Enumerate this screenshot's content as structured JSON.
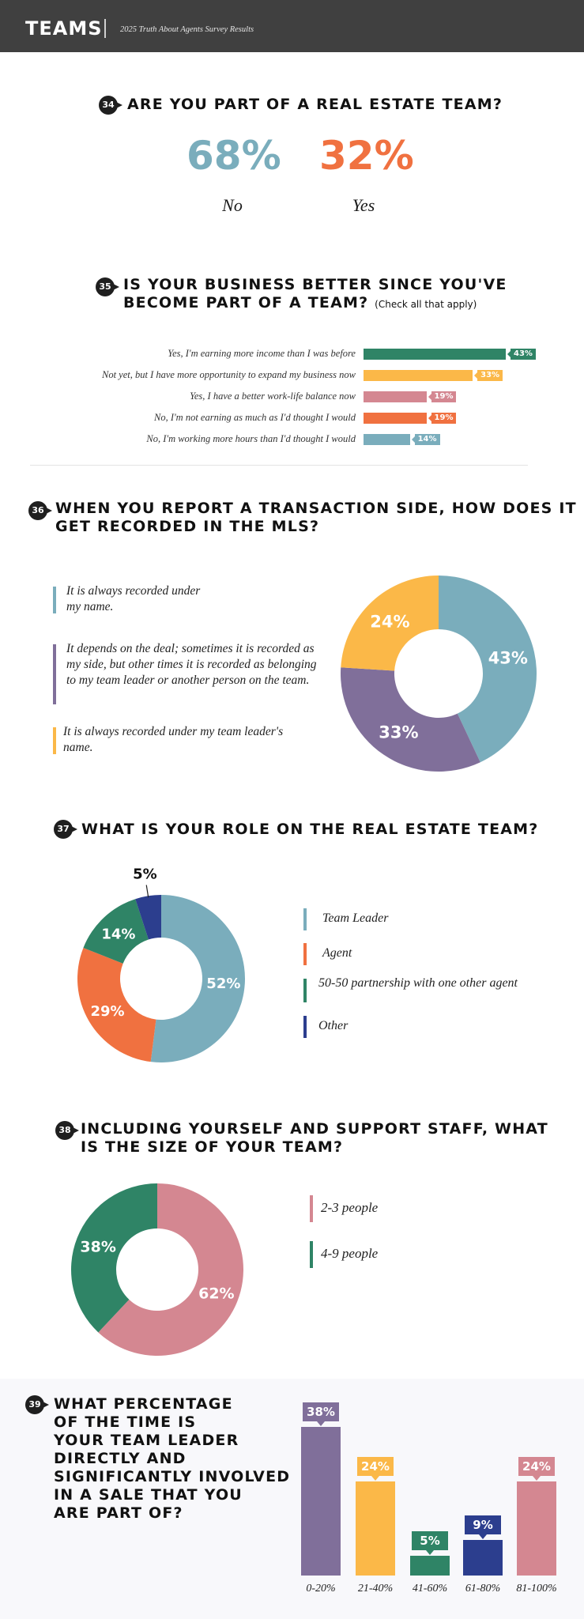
{
  "header": {
    "brand": "TEAMS",
    "subtitle": "2025 Truth About Agents Survey Results"
  },
  "colors": {
    "teal": "#7aadbc",
    "orange": "#f07140",
    "green": "#2f8466",
    "yellow": "#fbb848",
    "pink": "#d48791",
    "purple": "#806f9a",
    "navy": "#2c3e8e",
    "header_bg": "#404040"
  },
  "q34": {
    "num": "34",
    "title": "ARE YOU PART OF A REAL ESTATE TEAM?",
    "chart_data": {
      "type": "table",
      "categories": [
        "No",
        "Yes"
      ],
      "values": [
        68,
        32
      ],
      "labels": [
        "68%",
        "32%"
      ]
    }
  },
  "q35": {
    "num": "35",
    "title_line1": "IS YOUR BUSINESS BETTER SINCE YOU'VE",
    "title_line2": "BECOME PART OF A TEAM?",
    "note": "(Check all that apply)",
    "chart_data": {
      "type": "bar",
      "orientation": "horizontal",
      "categories": [
        "Yes, I'm earning more income than I was before",
        "Not yet, but I have more opportunity to expand my business now",
        "Yes, I have a better work-life balance now",
        "No, I'm not earning as much as I'd thought I would",
        "No, I'm working more hours than I'd thought I would"
      ],
      "values": [
        43,
        33,
        19,
        19,
        14
      ],
      "labels": [
        "43%",
        "33%",
        "19%",
        "19%",
        "14%"
      ],
      "colors": [
        "#2f8466",
        "#fbb848",
        "#d48791",
        "#f07140",
        "#7aadbc"
      ]
    }
  },
  "q36": {
    "num": "36",
    "title_line1": "WHEN YOU REPORT A TRANSACTION SIDE, HOW DOES IT",
    "title_line2": "GET RECORDED IN THE MLS?",
    "chart_data": {
      "type": "pie",
      "donut": true,
      "categories": [
        "It is always recorded under my name.",
        "It depends on the deal; sometimes it is recorded as my side, but other times it is recorded as belonging to my team leader or another person on the team.",
        "It is always recorded under my team leader's name."
      ],
      "values": [
        43,
        33,
        24
      ],
      "labels": [
        "43%",
        "33%",
        "24%"
      ],
      "colors": [
        "#7aadbc",
        "#806f9a",
        "#fbb848"
      ]
    }
  },
  "q37": {
    "num": "37",
    "title": "WHAT IS YOUR ROLE ON THE REAL ESTATE TEAM?",
    "chart_data": {
      "type": "pie",
      "donut": true,
      "categories": [
        "Team Leader",
        "Agent",
        "50-50 partnership with one other agent",
        "Other"
      ],
      "values": [
        52,
        29,
        14,
        5
      ],
      "labels": [
        "52%",
        "29%",
        "14%",
        "5%"
      ],
      "colors": [
        "#7aadbc",
        "#f07140",
        "#2f8466",
        "#2c3e8e"
      ]
    }
  },
  "q38": {
    "num": "38",
    "title_line1": "INCLUDING YOURSELF AND SUPPORT STAFF, WHAT",
    "title_line2": "IS THE SIZE OF YOUR TEAM?",
    "chart_data": {
      "type": "pie",
      "donut": true,
      "categories": [
        "2-3 people",
        "4-9 people"
      ],
      "values": [
        62,
        38
      ],
      "labels": [
        "62%",
        "38%"
      ],
      "colors": [
        "#d48791",
        "#2f8466"
      ]
    }
  },
  "q39": {
    "num": "39",
    "title_lines": [
      "WHAT PERCENTAGE",
      "OF THE TIME IS",
      "YOUR TEAM LEADER",
      "DIRECTLY AND",
      "SIGNIFICANTLY INVOLVED",
      "IN A SALE THAT YOU",
      "ARE PART OF?"
    ],
    "chart_data": {
      "type": "bar",
      "orientation": "vertical",
      "categories": [
        "0-20%",
        "21-40%",
        "41-60%",
        "61-80%",
        "81-100%"
      ],
      "values": [
        38,
        24,
        5,
        9,
        24
      ],
      "labels": [
        "38%",
        "24%",
        "5%",
        "9%",
        "24%"
      ],
      "colors": [
        "#806f9a",
        "#fbb848",
        "#2f8466",
        "#2c3e8e",
        "#d48791"
      ]
    }
  }
}
